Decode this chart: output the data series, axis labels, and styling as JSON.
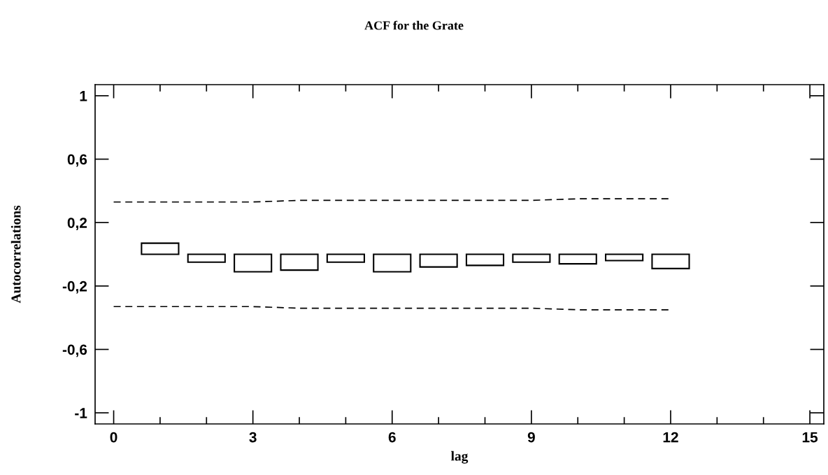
{
  "chart_data": {
    "type": "bar",
    "title": "ACF for the Grate",
    "xlabel": "lag",
    "ylabel": "Autocorrelations",
    "x": [
      1,
      2,
      3,
      4,
      5,
      6,
      7,
      8,
      9,
      10,
      11,
      12
    ],
    "series": [
      {
        "color": "#000000",
        "values": [
          0.07,
          -0.05,
          -0.11,
          -0.1,
          -0.05,
          -0.11,
          -0.08,
          -0.07,
          -0.05,
          -0.06,
          -0.04,
          -0.09
        ]
      },
      {
        "type": "line",
        "color": "#000000",
        "line_style": "dashed",
        "x": [
          0,
          1,
          2,
          3,
          4,
          5,
          6,
          7,
          8,
          9,
          10,
          11,
          12
        ],
        "values": [
          0.33,
          0.33,
          0.33,
          0.33,
          0.34,
          0.34,
          0.34,
          0.34,
          0.34,
          0.34,
          0.35,
          0.35,
          0.35
        ]
      },
      {
        "type": "line",
        "color": "#000000",
        "line_style": "dashed",
        "x": [
          0,
          1,
          2,
          3,
          4,
          5,
          6,
          7,
          8,
          9,
          10,
          11,
          12
        ],
        "values": [
          -0.33,
          -0.33,
          -0.33,
          -0.33,
          -0.34,
          -0.34,
          -0.34,
          -0.34,
          -0.34,
          -0.34,
          -0.35,
          -0.35,
          -0.35
        ]
      }
    ],
    "xlim": [
      -0.4,
      15.3
    ],
    "ylim": [
      -1.07,
      1.07
    ],
    "xticks": [
      0,
      3,
      6,
      9,
      12,
      15
    ],
    "yticks": [
      {
        "value": -1,
        "label": "-1"
      },
      {
        "value": -0.6,
        "label": "-0,6"
      },
      {
        "value": -0.2,
        "label": "-0,2"
      },
      {
        "value": 0.2,
        "label": "0,2"
      },
      {
        "value": 0.6,
        "label": "0,6"
      },
      {
        "value": 1,
        "label": "1"
      }
    ],
    "grid": false
  }
}
